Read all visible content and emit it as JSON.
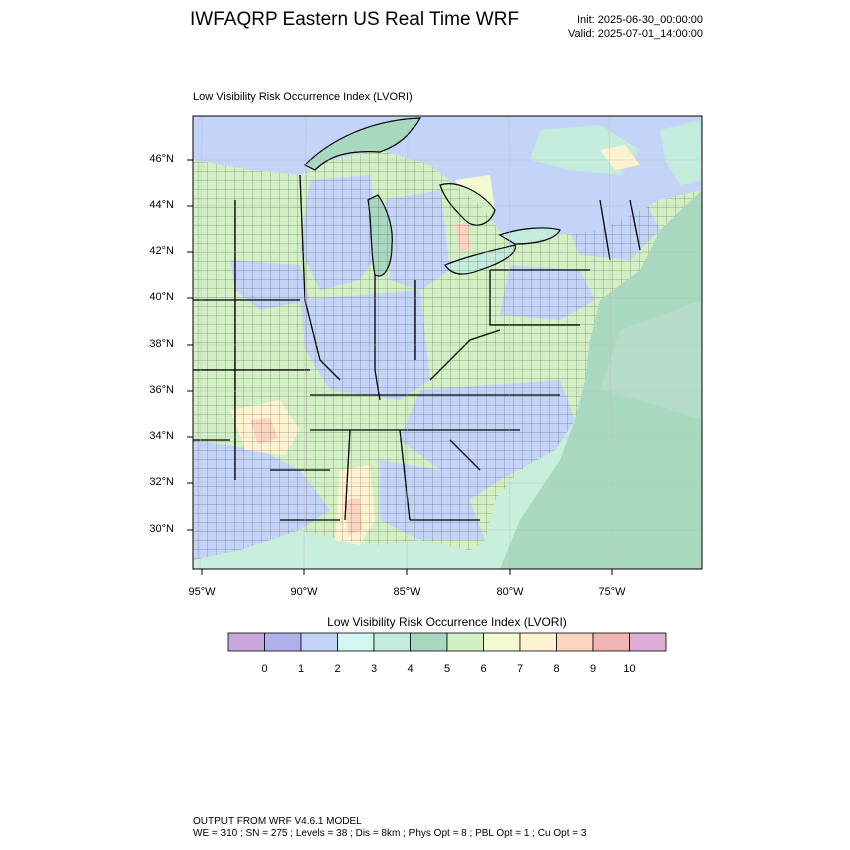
{
  "header": {
    "title": "IWFAQRP Eastern US Real Time WRF",
    "init": "Init: 2025-06-30_00:00:00",
    "valid": "Valid: 2025-07-01_14:00:00"
  },
  "field_title": "Low Visibility Risk Occurrence Index   (LVORI)",
  "map": {
    "lat_labels": [
      "46°N",
      "44°N",
      "42°N",
      "40°N",
      "38°N",
      "36°N",
      "34°N",
      "32°N",
      "30°N"
    ],
    "lon_labels": [
      "95°W",
      "90°W",
      "85°W",
      "80°W",
      "75°W"
    ]
  },
  "colorbar": {
    "title": "Low Visibility Risk Occurrence Index  (LVORI)",
    "colors": [
      "#c8a8dc",
      "#b0b0ec",
      "#c4d4f8",
      "#d2f6f0",
      "#c4ecdc",
      "#a8d8c0",
      "#d2f0c4",
      "#f2fad2",
      "#fff2d0",
      "#fcd4c0",
      "#f0b4b4",
      "#dcacd4"
    ],
    "labels": [
      "0",
      "1",
      "2",
      "3",
      "4",
      "5",
      "6",
      "7",
      "8",
      "9",
      "10"
    ]
  },
  "footer": {
    "line1": "OUTPUT FROM WRF V4.6.1 MODEL",
    "line2": "WE = 310 ; SN = 275 ; Levels = 38 ; Dis = 8km ; Phys Opt = 8 ; PBL Opt = 1 ; Cu Opt = 3"
  }
}
